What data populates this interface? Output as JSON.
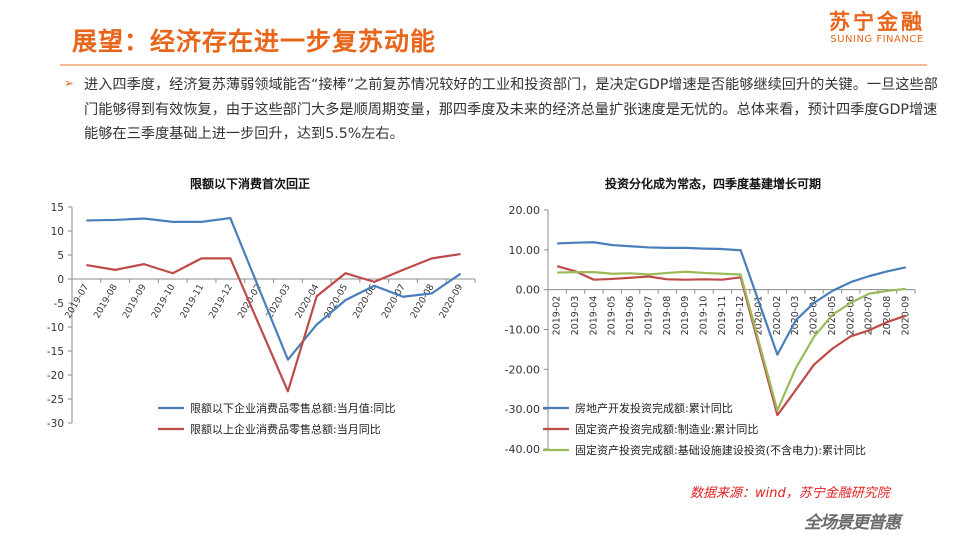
{
  "header": {
    "title": "展望：经济存在进一步复苏动能",
    "brand_cn": "苏宁金融",
    "brand_en": "SUNING FINANCE"
  },
  "bullet": {
    "arrow": "➢",
    "text": "进入四季度，经济复苏薄弱领域能否“接棒”之前复苏情况较好的工业和投资部门，是决定GDP增速是否能够继续回升的关键。一旦这些部门能够得到有效恢复，由于这些部门大多是顺周期变量，那四季度及未来的经济总量扩张速度是无忧的。总体来看，预计四季度GDP增速能够在三季度基础上进一步回升，达到5.5%左右。"
  },
  "chart_data": [
    {
      "type": "line",
      "title": "限额以下消费首次回正",
      "categories": [
        "2019-07",
        "2019-08",
        "2019-09",
        "2019-10",
        "2019-11",
        "2019-12",
        "2020-02",
        "2020-03",
        "2020-04",
        "2020-05",
        "2020-06",
        "2020-07",
        "2020-08",
        "2020-09"
      ],
      "ylim": [
        -30,
        15
      ],
      "yticks": [
        "15",
        "10",
        "5",
        "0",
        "-5",
        "-10",
        "-15",
        "-20",
        "-25",
        "-30"
      ],
      "legend_position": "bottom",
      "series": [
        {
          "name": "限额以下企业消费品零售总额:当月值:同比",
          "color": "#4a7ebb",
          "values": [
            12.2,
            12.3,
            12.6,
            11.9,
            11.9,
            12.7,
            null,
            -16.8,
            -9.5,
            -4.4,
            -1.4,
            -3.7,
            -3.0,
            1.1
          ]
        },
        {
          "name": "限额以上企业消费品零售总额:当月同比",
          "color": "#be4b48",
          "values": [
            2.9,
            1.9,
            3.1,
            1.2,
            4.3,
            4.3,
            null,
            -23.4,
            -3.6,
            1.2,
            -0.6,
            1.9,
            4.3,
            5.2
          ]
        }
      ]
    },
    {
      "type": "line",
      "title": "投资分化成为常态，四季度基建增长可期",
      "categories": [
        "2019-02",
        "2019-03",
        "2019-04",
        "2019-05",
        "2019-06",
        "2019-07",
        "2019-08",
        "2019-09",
        "2019-10",
        "2019-11",
        "2019-12",
        "2020-01",
        "2020-02",
        "2020-03",
        "2020-04",
        "2020-05",
        "2020-06",
        "2020-07",
        "2020-08",
        "2020-09"
      ],
      "ylim": [
        -40,
        20
      ],
      "yticks": [
        "20.00",
        "10.00",
        "0.00",
        "-10.00",
        "-20.00",
        "-30.00",
        "-40.00"
      ],
      "legend_position": "bottom",
      "series": [
        {
          "name": "房地产开发投资完成额:累计同比",
          "color": "#4a7ebb",
          "values": [
            11.6,
            11.8,
            11.9,
            11.2,
            10.9,
            10.6,
            10.5,
            10.5,
            10.3,
            10.2,
            9.9,
            null,
            -16.3,
            -7.7,
            -3.3,
            -0.3,
            1.9,
            3.4,
            4.6,
            5.6
          ]
        },
        {
          "name": "固定资产投资完成额:制造业:累计同比",
          "color": "#be4b48",
          "values": [
            5.9,
            4.6,
            2.5,
            2.7,
            3.0,
            3.3,
            2.6,
            2.5,
            2.6,
            2.5,
            3.1,
            null,
            -31.5,
            -25.2,
            -18.8,
            -14.8,
            -11.7,
            -10.2,
            -8.1,
            -6.5
          ]
        },
        {
          "name": "固定资产投资完成额:基础设施建设投资(不含电力):累计同比",
          "color": "#9bbb59",
          "values": [
            4.3,
            4.4,
            4.4,
            4.0,
            4.1,
            3.8,
            4.2,
            4.5,
            4.2,
            4.0,
            3.8,
            null,
            -30.3,
            -19.7,
            -11.8,
            -6.3,
            -3.3,
            -1.0,
            -0.3,
            0.2
          ]
        }
      ]
    }
  ],
  "footer": {
    "source": "数据来源：wind，苏宁金融研究院",
    "slogan": "全场景更普惠"
  }
}
